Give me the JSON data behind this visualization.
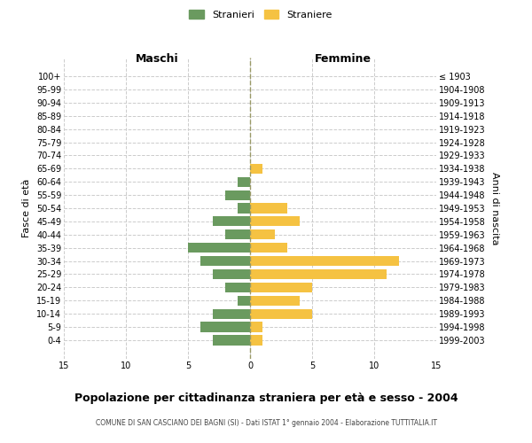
{
  "age_groups": [
    "100+",
    "95-99",
    "90-94",
    "85-89",
    "80-84",
    "75-79",
    "70-74",
    "65-69",
    "60-64",
    "55-59",
    "50-54",
    "45-49",
    "40-44",
    "35-39",
    "30-34",
    "25-29",
    "20-24",
    "15-19",
    "10-14",
    "5-9",
    "0-4"
  ],
  "birth_years": [
    "≤ 1903",
    "1904-1908",
    "1909-1913",
    "1914-1918",
    "1919-1923",
    "1924-1928",
    "1929-1933",
    "1934-1938",
    "1939-1943",
    "1944-1948",
    "1949-1953",
    "1954-1958",
    "1959-1963",
    "1964-1968",
    "1969-1973",
    "1974-1978",
    "1979-1983",
    "1984-1988",
    "1989-1993",
    "1994-1998",
    "1999-2003"
  ],
  "maschi": [
    0,
    0,
    0,
    0,
    0,
    0,
    0,
    0,
    1,
    2,
    1,
    3,
    2,
    5,
    4,
    3,
    2,
    1,
    3,
    4,
    3
  ],
  "femmine": [
    0,
    0,
    0,
    0,
    0,
    0,
    0,
    1,
    0,
    0,
    3,
    4,
    2,
    3,
    12,
    11,
    5,
    4,
    5,
    1,
    1
  ],
  "male_color": "#6a9a5f",
  "female_color": "#f5c242",
  "grid_color": "#cccccc",
  "center_line_color": "#999966",
  "background_color": "#ffffff",
  "title": "Popolazione per cittadinanza straniera per età e sesso - 2004",
  "subtitle": "COMUNE DI SAN CASCIANO DEI BAGNI (SI) - Dati ISTAT 1° gennaio 2004 - Elaborazione TUTTITALIA.IT",
  "ylabel_left": "Fasce di età",
  "ylabel_right": "Anni di nascita",
  "header_left": "Maschi",
  "header_right": "Femmine",
  "legend_male": "Stranieri",
  "legend_female": "Straniere",
  "xlim": 15,
  "bar_height": 0.75
}
